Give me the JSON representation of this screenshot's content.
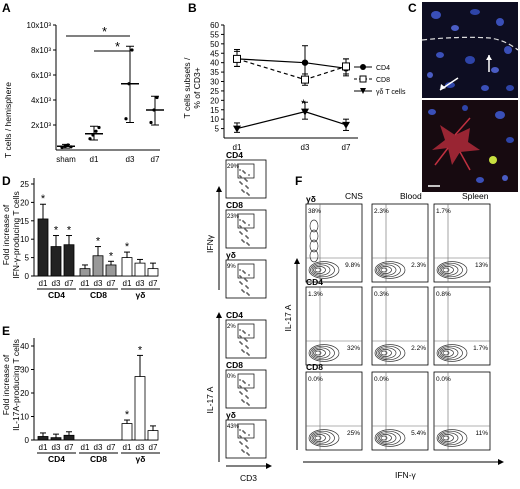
{
  "panels": {
    "A": {
      "letter": "A",
      "ylabel": "T cells / hemisphere",
      "yticks": [
        "2x10³",
        "4x10³",
        "6x10³",
        "8x10³",
        "10x10³"
      ],
      "xticks": [
        "sham",
        "d1",
        "d3",
        "d7"
      ],
      "stars": [
        "*",
        "*"
      ]
    },
    "B": {
      "letter": "B",
      "ylabel1": "T cells subsets /",
      "ylabel2": "% of CD3+",
      "yticks": [
        "5",
        "10",
        "15",
        "20",
        "25",
        "30",
        "35",
        "40",
        "45",
        "50",
        "55",
        "60"
      ],
      "xticks": [
        "d1",
        "d3",
        "d7"
      ],
      "legend": [
        "CD4",
        "CD8",
        "γδ T cells"
      ],
      "star": "*"
    },
    "C": {
      "letter": "C"
    },
    "D": {
      "letter": "D",
      "ylabel1": "Fold increase of",
      "ylabel2": "IFN-γ-producing T cells",
      "yticks": [
        "0",
        "5",
        "10",
        "15",
        "20",
        "25"
      ],
      "days": [
        "d1",
        "d3",
        "d7",
        "d1",
        "d3",
        "d7",
        "d1",
        "d3",
        "d7"
      ],
      "groups": [
        "CD4",
        "CD8",
        "γδ"
      ],
      "star": "*"
    },
    "E": {
      "letter": "E",
      "ylabel1": "Fold increase of",
      "ylabel2": "IL-17A-producing T cells",
      "yticks": [
        "0",
        "10",
        "20",
        "30",
        "40"
      ],
      "days": [
        "d1",
        "d3",
        "d7",
        "d1",
        "d3",
        "d7",
        "d1",
        "d3",
        "d7"
      ],
      "groups": [
        "CD4",
        "CD8",
        "γδ"
      ],
      "star": "*"
    },
    "F": {
      "letter": "F",
      "cols": [
        "CNS",
        "Blood",
        "Spleen"
      ],
      "rows": [
        "γδ",
        "CD4",
        "CD8"
      ],
      "yaxis": "IL-17 A",
      "xaxis": "IFN-γ",
      "pct": [
        [
          "38%",
          "9.8%",
          "2.3%",
          "2.3%",
          "1.7%",
          "13%"
        ],
        [
          "1.3%",
          "32%",
          "0.3%",
          "2.2%",
          "0.8%",
          "1.7%"
        ],
        [
          "0.0%",
          "25%",
          "0.0%",
          "5.4%",
          "0.0%",
          "11%"
        ]
      ]
    },
    "mid": {
      "rows": [
        "CD4",
        "CD8",
        "γδ",
        "CD4",
        "CD8",
        "γδ"
      ],
      "pct": [
        "29%",
        "23%",
        "9%",
        "2%",
        "0%",
        "43%"
      ],
      "ifn": "IFNγ",
      "il17": "IL-17 A",
      "cd3": "CD3"
    }
  },
  "chart_data": [
    {
      "type": "scatter",
      "panel": "A",
      "categories": [
        "sham",
        "d1",
        "d3",
        "d7"
      ],
      "values": [
        300,
        1300,
        5300,
        3200
      ],
      "ylabel": "T cells / hemisphere",
      "ylim": [
        0,
        10000
      ]
    },
    {
      "type": "line",
      "panel": "B",
      "x": [
        "d1",
        "d3",
        "d7"
      ],
      "series": [
        {
          "name": "CD4",
          "values": [
            42,
            40,
            37
          ]
        },
        {
          "name": "CD8",
          "values": [
            42,
            31,
            38
          ]
        },
        {
          "name": "γδ T cells",
          "values": [
            5,
            14,
            7
          ]
        }
      ],
      "ylabel": "T cells subsets / % of CD3+",
      "ylim": [
        0,
        60
      ]
    },
    {
      "type": "bar",
      "panel": "D",
      "categories": [
        "CD4 d1",
        "CD4 d3",
        "CD4 d7",
        "CD8 d1",
        "CD8 d3",
        "CD8 d7",
        "γδ d1",
        "γδ d3",
        "γδ d7"
      ],
      "values": [
        15.5,
        8,
        8.5,
        2,
        5.5,
        3,
        5,
        3.5,
        2
      ],
      "ylabel": "Fold increase of IFN-γ-producing T cells",
      "ylim": [
        0,
        25
      ]
    },
    {
      "type": "bar",
      "panel": "E",
      "categories": [
        "CD4 d1",
        "CD4 d3",
        "CD4 d7",
        "CD8 d1",
        "CD8 d3",
        "CD8 d7",
        "γδ d1",
        "γδ d3",
        "γδ d7"
      ],
      "values": [
        1.5,
        1,
        2,
        0,
        0,
        0,
        7,
        27,
        4
      ],
      "ylabel": "Fold increase of IL-17A-producing T cells",
      "ylim": [
        0,
        40
      ]
    }
  ]
}
